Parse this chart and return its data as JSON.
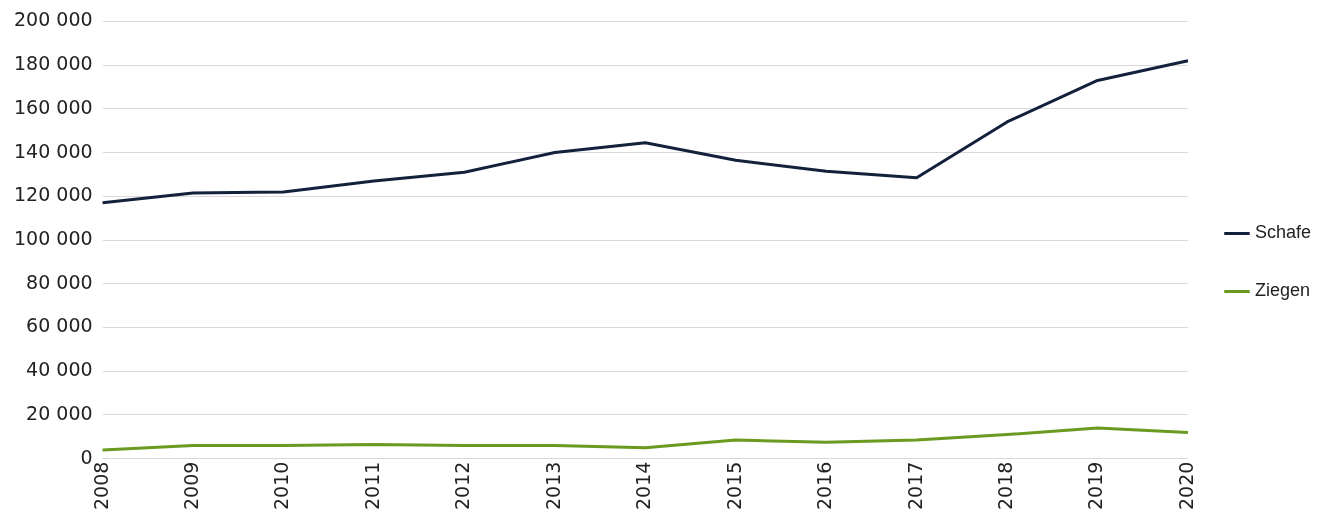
{
  "chart_data": {
    "type": "line",
    "categories": [
      "2008",
      "2009",
      "2010",
      "2011",
      "2012",
      "2013",
      "2014",
      "2015",
      "2016",
      "2017",
      "2018",
      "2019",
      "2020"
    ],
    "series": [
      {
        "name": "Schafe",
        "color": "#14213d",
        "values": [
          117000,
          121500,
          122000,
          127000,
          131000,
          140000,
          144500,
          136500,
          131500,
          128500,
          154000,
          173000,
          182000
        ]
      },
      {
        "name": "Ziegen",
        "color": "#6a9a1f",
        "values": [
          4000,
          6000,
          6000,
          6500,
          6000,
          6000,
          5000,
          8500,
          7500,
          8500,
          11000,
          14000,
          12000
        ]
      }
    ],
    "ylim": [
      0,
      200000
    ],
    "yticks": [
      {
        "value": 0,
        "label": "0"
      },
      {
        "value": 20000,
        "label": "20 000"
      },
      {
        "value": 40000,
        "label": "40 000"
      },
      {
        "value": 60000,
        "label": "60 000"
      },
      {
        "value": 80000,
        "label": "80 000"
      },
      {
        "value": 100000,
        "label": "100 000"
      },
      {
        "value": 120000,
        "label": "120 000"
      },
      {
        "value": 140000,
        "label": "140 000"
      },
      {
        "value": 160000,
        "label": "160 000"
      },
      {
        "value": 180000,
        "label": "180 000"
      },
      {
        "value": 200000,
        "label": "200 000"
      }
    ],
    "grid": "y",
    "legend": "right",
    "marker": "none",
    "line_style": "solid"
  }
}
